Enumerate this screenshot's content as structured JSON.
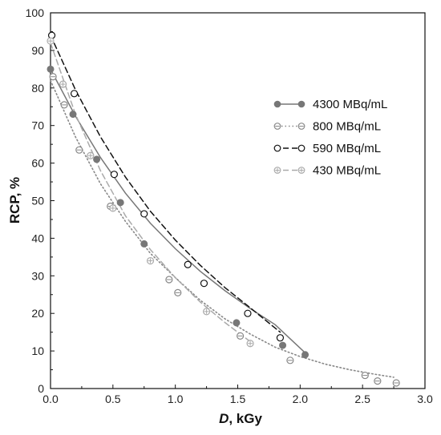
{
  "chart_data": {
    "type": "scatter",
    "xlabel_italic": "D",
    "xlabel_rest": ", kGy",
    "ylabel": "RCP, %",
    "xlim": [
      0,
      3.0
    ],
    "ylim": [
      0,
      100
    ],
    "x_ticks": [
      "0.0",
      "0.5",
      "1.0",
      "1.5",
      "2.0",
      "2.5",
      "3.0"
    ],
    "y_ticks": [
      "0",
      "10",
      "20",
      "30",
      "40",
      "50",
      "60",
      "70",
      "80",
      "90",
      "100"
    ],
    "grid": false,
    "legend_position": "right",
    "series": [
      {
        "name": "4300 MBq/mL",
        "color": "#777777",
        "marker": "filled-circle",
        "line_style": "solid",
        "points": [
          [
            0.0,
            85
          ],
          [
            0.18,
            73
          ],
          [
            0.37,
            61
          ],
          [
            0.56,
            49.5
          ],
          [
            0.75,
            38.5
          ],
          [
            1.49,
            17.5
          ],
          [
            1.86,
            11.5
          ],
          [
            2.04,
            9
          ]
        ],
        "fit": [
          [
            0.0,
            85
          ],
          [
            0.2,
            72.5
          ],
          [
            0.4,
            61.5
          ],
          [
            0.6,
            52
          ],
          [
            0.8,
            44
          ],
          [
            1.0,
            37.2
          ],
          [
            1.2,
            31.2
          ],
          [
            1.4,
            26
          ],
          [
            1.6,
            21.3
          ],
          [
            1.8,
            17
          ],
          [
            2.04,
            9.5
          ]
        ]
      },
      {
        "name": "800 MBq/mL",
        "color": "#888888",
        "marker": "circle-minus",
        "line_style": "dotted",
        "points": [
          [
            0.02,
            83
          ],
          [
            0.11,
            75.5
          ],
          [
            0.23,
            63.5
          ],
          [
            0.48,
            48.5
          ],
          [
            0.95,
            29
          ],
          [
            1.02,
            25.5
          ],
          [
            1.52,
            14
          ],
          [
            1.92,
            7.5
          ],
          [
            2.52,
            3.5
          ],
          [
            2.62,
            2
          ],
          [
            2.77,
            1.5
          ]
        ],
        "fit": [
          [
            0.0,
            82
          ],
          [
            0.2,
            67
          ],
          [
            0.4,
            54.5
          ],
          [
            0.6,
            44.5
          ],
          [
            0.8,
            36
          ],
          [
            1.0,
            29.5
          ],
          [
            1.2,
            23.5
          ],
          [
            1.4,
            18.5
          ],
          [
            1.6,
            14.5
          ],
          [
            1.8,
            11
          ],
          [
            2.0,
            8.5
          ],
          [
            2.2,
            6.5
          ],
          [
            2.4,
            5
          ],
          [
            2.6,
            3.8
          ],
          [
            2.75,
            3
          ]
        ]
      },
      {
        "name": "590 MBq/mL",
        "color": "#111111",
        "marker": "open-circle",
        "line_style": "dashed",
        "points": [
          [
            0.01,
            94
          ],
          [
            0.19,
            78.5
          ],
          [
            0.51,
            57
          ],
          [
            0.75,
            46.5
          ],
          [
            1.1,
            33
          ],
          [
            1.23,
            28
          ],
          [
            1.58,
            20
          ],
          [
            1.84,
            13.5
          ]
        ],
        "fit": [
          [
            0.0,
            94
          ],
          [
            0.2,
            79.5
          ],
          [
            0.4,
            67
          ],
          [
            0.6,
            56.3
          ],
          [
            0.8,
            47.2
          ],
          [
            1.0,
            39.5
          ],
          [
            1.2,
            32.8
          ],
          [
            1.4,
            26.8
          ],
          [
            1.6,
            21.5
          ],
          [
            1.84,
            15
          ]
        ]
      },
      {
        "name": "430 MBq/mL",
        "color": "#aaaaaa",
        "marker": "circle-plus",
        "line_style": "dashed",
        "points": [
          [
            0.0,
            92.5
          ],
          [
            0.1,
            81
          ],
          [
            0.32,
            62
          ],
          [
            0.5,
            48
          ],
          [
            0.8,
            34
          ],
          [
            1.25,
            20.5
          ],
          [
            1.6,
            12
          ]
        ],
        "fit": [
          [
            0.0,
            92
          ],
          [
            0.2,
            73
          ],
          [
            0.4,
            58
          ],
          [
            0.6,
            46
          ],
          [
            0.8,
            37
          ],
          [
            1.0,
            29.5
          ],
          [
            1.2,
            23
          ],
          [
            1.4,
            17.5
          ],
          [
            1.6,
            12.5
          ]
        ]
      }
    ]
  }
}
